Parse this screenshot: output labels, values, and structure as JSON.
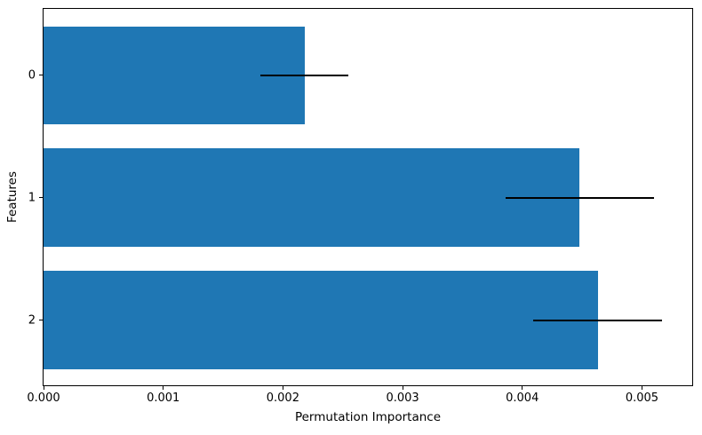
{
  "chart_data": {
    "type": "bar",
    "orientation": "horizontal",
    "title": "",
    "xlabel": "Permutation Importance",
    "ylabel": "Features",
    "categories": [
      "0",
      "1",
      "2"
    ],
    "values": [
      0.00218,
      0.00448,
      0.00463
    ],
    "error_bars": [
      0.00037,
      0.00062,
      0.00054
    ],
    "xlim": [
      0,
      0.00542
    ],
    "ylim": [
      -0.542,
      2.533
    ],
    "y_inverted": true,
    "xtick_values": [
      0,
      0.001,
      0.002,
      0.003,
      0.004,
      0.005
    ],
    "xtick_labels": [
      "0.000",
      "0.001",
      "0.002",
      "0.003",
      "0.004",
      "0.005"
    ],
    "bar_height_fraction": 0.8,
    "bar_color": "#1f77b4",
    "error_color": "#000000",
    "grid": false,
    "legend": null
  }
}
